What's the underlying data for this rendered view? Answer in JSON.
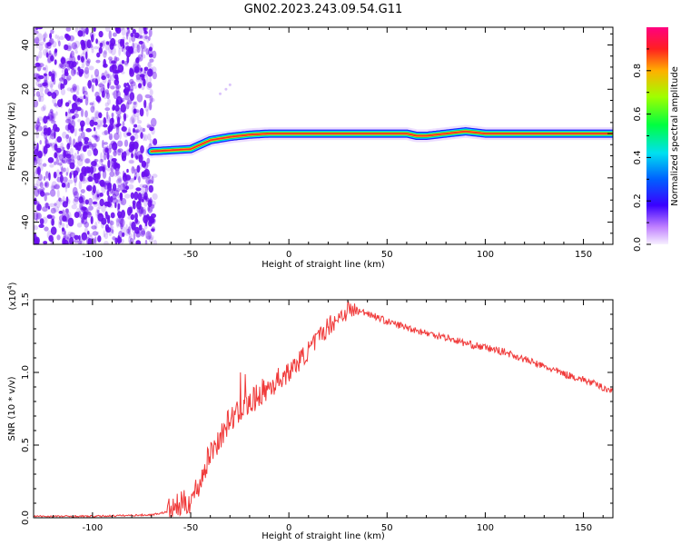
{
  "title": "GN02.2023.243.09.54.G11",
  "colors": {
    "noise": "#6a0ef0",
    "ridge_outer": "#2020ff",
    "ridge_mid": "#00e060",
    "ridge_inner": "#ff2a2a",
    "snr_line": "#f03a3a",
    "axis": "#000000"
  },
  "chart_data": [
    {
      "type": "heatmap",
      "xlabel": "Height of straight line (km)",
      "ylabel": "Frequency (Hz)",
      "xlim": [
        -130,
        165
      ],
      "ylim": [
        -50,
        48
      ],
      "x_ticks": [
        -100,
        -50,
        0,
        50,
        100,
        150
      ],
      "y_ticks": [
        -40,
        -20,
        0,
        20,
        40
      ],
      "colorbar": {
        "label": "Normalized spectral amplitude",
        "range": [
          0,
          1
        ],
        "ticks": [
          "0.0",
          "0.2",
          "0.4",
          "0.6",
          "0.8"
        ],
        "tick_values": [
          0,
          0.2,
          0.4,
          0.6,
          0.8
        ]
      },
      "noise_region_km": [
        -130,
        -70
      ],
      "ridge": {
        "x": [
          -70,
          -60,
          -50,
          -45,
          -40,
          -30,
          -20,
          -10,
          0,
          20,
          40,
          60,
          65,
          70,
          80,
          90,
          100,
          120,
          165
        ],
        "freq": [
          -8,
          -7.5,
          -7,
          -5,
          -3,
          -1.5,
          -0.5,
          0,
          0,
          0,
          0,
          0,
          -1,
          -1,
          0,
          1,
          0,
          0,
          0
        ]
      }
    },
    {
      "type": "line",
      "xlabel": "Height of straight line (km)",
      "ylabel": "SNR (10 * v/v)",
      "y_multiplier": "(x10",
      "y_multiplier_exp": "4",
      "y_multiplier_close": ")",
      "xlim": [
        -130,
        165
      ],
      "ylim": [
        0,
        1.5
      ],
      "x_ticks": [
        -100,
        -50,
        0,
        50,
        100,
        150
      ],
      "y_ticks": [
        0.0,
        0.5,
        1.0,
        1.5
      ],
      "y_tick_labels": [
        "0.0",
        "0.5",
        "1.0",
        "1.5"
      ],
      "series": [
        {
          "x": [
            -130,
            -100,
            -70,
            -62,
            -55,
            -50,
            -45,
            -40,
            -35,
            -30,
            -25,
            -20,
            -15,
            -10,
            -5,
            0,
            10,
            20,
            30,
            40,
            50,
            60,
            70,
            80,
            90,
            100,
            110,
            120,
            130,
            140,
            150,
            165
          ],
          "values": [
            0.01,
            0.01,
            0.02,
            0.04,
            0.09,
            0.12,
            0.25,
            0.45,
            0.55,
            0.68,
            0.72,
            0.78,
            0.85,
            0.9,
            0.95,
            1.0,
            1.15,
            1.32,
            1.43,
            1.41,
            1.35,
            1.31,
            1.27,
            1.24,
            1.2,
            1.17,
            1.14,
            1.09,
            1.04,
            0.99,
            0.95,
            0.87
          ]
        }
      ]
    }
  ]
}
